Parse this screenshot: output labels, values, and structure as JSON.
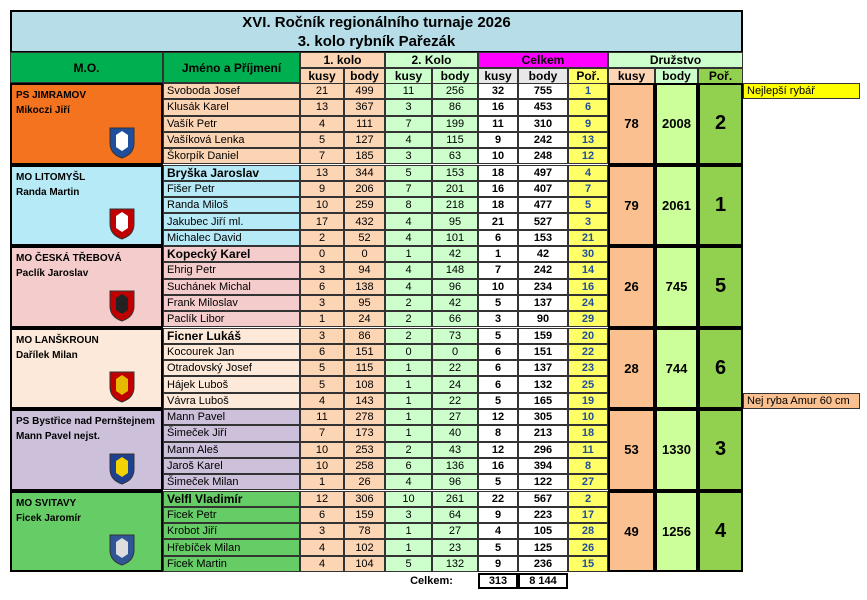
{
  "header": {
    "title": "XVI. Ročník regionálního turnaje 2026",
    "subtitle": "3. kolo rybník Pařezák"
  },
  "columns": {
    "mo": "M.O.",
    "name": "Jméno a Příjmení",
    "kolo1": "1. kolo",
    "kolo2": "2. Kolo",
    "celkem": "Celkem",
    "druzstvo": "Družstvo",
    "sub": [
      "kusy",
      "body",
      "kusy",
      "body",
      "kusy",
      "body",
      "Poř.",
      "kusy",
      "body",
      "Poř."
    ]
  },
  "groups": [
    {
      "mo": "PS JIMRAMOV",
      "leader": "Mikoczi Jiří",
      "team": [
        78,
        2008,
        2
      ],
      "members": [
        {
          "name": "Svoboda Josef",
          "values": [
            21,
            499,
            11,
            256,
            32,
            755,
            1
          ]
        },
        {
          "name": "Klusák Karel",
          "values": [
            13,
            367,
            3,
            86,
            16,
            453,
            6
          ]
        },
        {
          "name": "Vašík Petr",
          "values": [
            4,
            111,
            7,
            199,
            11,
            310,
            9
          ]
        },
        {
          "name": "Vašíková Lenka",
          "values": [
            5,
            127,
            4,
            115,
            9,
            242,
            13
          ]
        },
        {
          "name": "Škorpík Daniel",
          "values": [
            7,
            185,
            3,
            63,
            10,
            248,
            12
          ]
        }
      ]
    },
    {
      "mo": "MO LITOMYŠL",
      "leader": "Randa Martin",
      "team": [
        79,
        2061,
        1
      ],
      "members": [
        {
          "name": "Bryška Jaroslav",
          "values": [
            13,
            344,
            5,
            153,
            18,
            497,
            4
          ]
        },
        {
          "name": "Fišer Petr",
          "values": [
            9,
            206,
            7,
            201,
            16,
            407,
            7
          ]
        },
        {
          "name": "Randa Miloš",
          "values": [
            10,
            259,
            8,
            218,
            18,
            477,
            5
          ]
        },
        {
          "name": "Jakubec Jiří ml.",
          "values": [
            17,
            432,
            4,
            95,
            21,
            527,
            3
          ]
        },
        {
          "name": "Michalec David",
          "values": [
            2,
            52,
            4,
            101,
            6,
            153,
            21
          ]
        }
      ]
    },
    {
      "mo": "MO ČESKÁ TŘEBOVÁ",
      "leader": "Paclík Jaroslav",
      "team": [
        26,
        745,
        5
      ],
      "members": [
        {
          "name": "Kopecký Karel",
          "values": [
            0,
            0,
            1,
            42,
            1,
            42,
            30
          ]
        },
        {
          "name": "Ehrig Petr",
          "values": [
            3,
            94,
            4,
            148,
            7,
            242,
            14
          ]
        },
        {
          "name": "Suchánek Michal",
          "values": [
            6,
            138,
            4,
            96,
            10,
            234,
            16
          ]
        },
        {
          "name": "Frank Miloslav",
          "values": [
            3,
            95,
            2,
            42,
            5,
            137,
            24
          ]
        },
        {
          "name": "Paclík Libor",
          "values": [
            1,
            24,
            2,
            66,
            3,
            90,
            29
          ]
        }
      ]
    },
    {
      "mo": "MO LANŠKROUN",
      "leader": "Dařílek Milan",
      "team": [
        28,
        744,
        6
      ],
      "members": [
        {
          "name": "Ficner Lukáš",
          "values": [
            3,
            86,
            2,
            73,
            5,
            159,
            20
          ]
        },
        {
          "name": "Kocourek Jan",
          "values": [
            6,
            151,
            0,
            0,
            6,
            151,
            22
          ]
        },
        {
          "name": "Otradovský Josef",
          "values": [
            5,
            115,
            1,
            22,
            6,
            137,
            23
          ]
        },
        {
          "name": "Hájek Luboš",
          "values": [
            5,
            108,
            1,
            24,
            6,
            132,
            25
          ]
        },
        {
          "name": "Vávra Luboš",
          "values": [
            4,
            143,
            1,
            22,
            5,
            165,
            19
          ]
        }
      ]
    },
    {
      "mo": "PS Bystřice nad Pernštejnem",
      "leader": "Mann Pavel nejst.",
      "team": [
        53,
        1330,
        3
      ],
      "members": [
        {
          "name": "Mann Pavel",
          "values": [
            11,
            278,
            1,
            27,
            12,
            305,
            10
          ]
        },
        {
          "name": "Šimeček Jiří",
          "values": [
            7,
            173,
            1,
            40,
            8,
            213,
            18
          ]
        },
        {
          "name": "Mann Aleš",
          "values": [
            10,
            253,
            2,
            43,
            12,
            296,
            11
          ]
        },
        {
          "name": "Jaroš Karel",
          "values": [
            10,
            258,
            6,
            136,
            16,
            394,
            8
          ]
        },
        {
          "name": "Šimeček Milan",
          "values": [
            1,
            26,
            4,
            96,
            5,
            122,
            27
          ]
        }
      ]
    },
    {
      "mo": "MO SVITAVY",
      "leader": "Ficek Jaromír",
      "team": [
        49,
        1256,
        4
      ],
      "members": [
        {
          "name": "Velfl Vladimír",
          "values": [
            12,
            306,
            10,
            261,
            22,
            567,
            2
          ]
        },
        {
          "name": "Ficek Petr",
          "values": [
            6,
            159,
            3,
            64,
            9,
            223,
            17
          ]
        },
        {
          "name": "Krobot Jiří",
          "values": [
            3,
            78,
            1,
            27,
            4,
            105,
            28
          ]
        },
        {
          "name": "Hřebíček Milan",
          "values": [
            4,
            102,
            1,
            23,
            5,
            125,
            26
          ]
        },
        {
          "name": "Ficek Martin",
          "values": [
            4,
            104,
            5,
            132,
            9,
            236,
            15
          ]
        }
      ]
    }
  ],
  "notes": [
    {
      "text": "Nejlepší rybář"
    },
    {
      "text": "Nej ryba Amur 60 cm"
    }
  ],
  "footer": {
    "label": "Celkem:",
    "kusy": 313,
    "body": {
      "value": 8144,
      "label": "8 144"
    }
  }
}
